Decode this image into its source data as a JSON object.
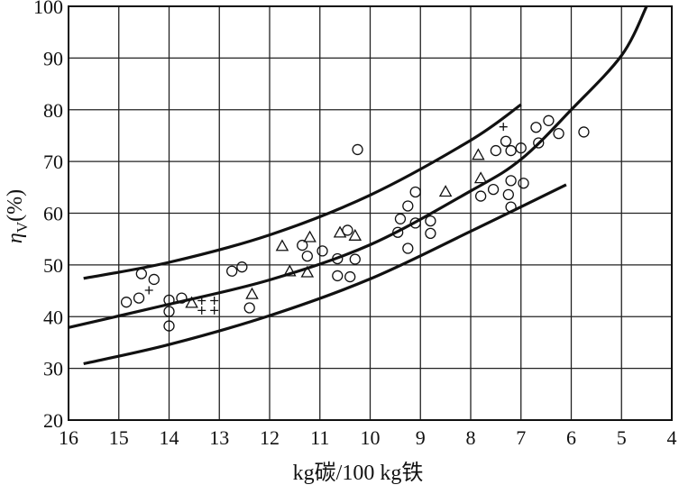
{
  "chart_data": {
    "type": "scatter",
    "xlabel": "kg碳/100 kg铁",
    "ylabel_main": "η",
    "ylabel_sub": "V",
    "ylabel_unit": "(%)",
    "x_reversed": true,
    "xlim": [
      16,
      4
    ],
    "ylim": [
      20,
      100
    ],
    "x_ticks": [
      "16",
      "15",
      "14",
      "13",
      "12",
      "11",
      "10",
      "9",
      "8",
      "7",
      "6",
      "5",
      "4"
    ],
    "y_ticks": [
      "20",
      "30",
      "40",
      "50",
      "60",
      "70",
      "80",
      "90",
      "100"
    ],
    "grid": true,
    "series": [
      {
        "marker": "circle",
        "points": [
          [
            14.85,
            42.8
          ],
          [
            14.6,
            43.6
          ],
          [
            14.55,
            48.3
          ],
          [
            14.3,
            47.2
          ],
          [
            14.0,
            43.2
          ],
          [
            14.0,
            41.0
          ],
          [
            14.0,
            38.2
          ],
          [
            13.75,
            43.6
          ],
          [
            12.75,
            48.8
          ],
          [
            12.55,
            49.6
          ],
          [
            12.4,
            41.7
          ],
          [
            11.35,
            53.8
          ],
          [
            11.25,
            51.7
          ],
          [
            10.95,
            52.7
          ],
          [
            10.65,
            51.2
          ],
          [
            10.65,
            47.9
          ],
          [
            10.45,
            56.7
          ],
          [
            10.4,
            47.7
          ],
          [
            10.3,
            51.1
          ],
          [
            10.25,
            72.3
          ],
          [
            9.45,
            56.3
          ],
          [
            9.4,
            58.9
          ],
          [
            9.25,
            61.4
          ],
          [
            9.25,
            53.2
          ],
          [
            9.1,
            64.1
          ],
          [
            9.1,
            58.1
          ],
          [
            8.8,
            58.5
          ],
          [
            8.8,
            56.1
          ],
          [
            7.8,
            63.3
          ],
          [
            7.55,
            64.6
          ],
          [
            7.5,
            72.1
          ],
          [
            7.3,
            73.9
          ],
          [
            7.2,
            72.1
          ],
          [
            7.2,
            66.3
          ],
          [
            7.25,
            63.6
          ],
          [
            7.2,
            61.2
          ],
          [
            7.0,
            72.6
          ],
          [
            6.95,
            65.8
          ],
          [
            6.7,
            76.6
          ],
          [
            6.65,
            73.6
          ],
          [
            6.45,
            77.9
          ],
          [
            6.25,
            75.4
          ],
          [
            5.75,
            75.7
          ]
        ]
      },
      {
        "marker": "triangle",
        "points": [
          [
            13.55,
            42.6
          ],
          [
            12.35,
            44.3
          ],
          [
            11.75,
            53.6
          ],
          [
            11.6,
            48.7
          ],
          [
            11.25,
            48.5
          ],
          [
            11.2,
            55.3
          ],
          [
            10.6,
            56.2
          ],
          [
            10.3,
            55.6
          ],
          [
            8.5,
            64.1
          ],
          [
            7.85,
            71.2
          ],
          [
            7.8,
            66.7
          ]
        ]
      },
      {
        "marker": "plus",
        "points": [
          [
            14.4,
            45.1
          ],
          [
            13.35,
            41.2
          ],
          [
            13.35,
            43.1
          ],
          [
            13.1,
            41.2
          ],
          [
            13.1,
            43.1
          ],
          [
            7.35,
            76.7
          ]
        ]
      }
    ],
    "curves": [
      {
        "name": "upper",
        "points": [
          [
            15.7,
            47.4
          ],
          [
            14,
            50.5
          ],
          [
            12,
            55.8
          ],
          [
            10,
            63.5
          ],
          [
            8,
            74.1
          ],
          [
            7.0,
            81.0
          ]
        ]
      },
      {
        "name": "middle",
        "points": [
          [
            16,
            37.9
          ],
          [
            14,
            42.4
          ],
          [
            12,
            47.1
          ],
          [
            10,
            53.9
          ],
          [
            8,
            64.3
          ],
          [
            7,
            70.4
          ],
          [
            6,
            80.0
          ],
          [
            5,
            90.5
          ],
          [
            4.5,
            100
          ]
        ]
      },
      {
        "name": "lower",
        "points": [
          [
            15.7,
            30.9
          ],
          [
            14,
            34.6
          ],
          [
            12,
            40.2
          ],
          [
            10,
            47.3
          ],
          [
            8,
            56.5
          ],
          [
            6.1,
            65.5
          ]
        ]
      }
    ]
  }
}
